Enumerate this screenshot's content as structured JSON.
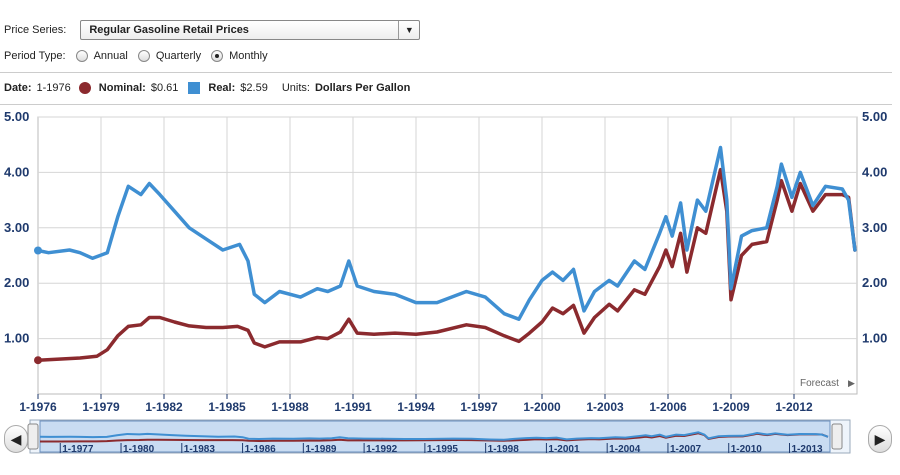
{
  "controls": {
    "series_label": "Price Series:",
    "series_value": "Regular Gasoline Retail Prices",
    "period_label": "Period Type:",
    "periods": [
      "Annual",
      "Quarterly",
      "Monthly"
    ],
    "period_selected": "Monthly"
  },
  "info": {
    "date_label": "Date:",
    "date_value": "1-1976",
    "nominal_label": "Nominal:",
    "nominal_value": "$0.61",
    "real_label": "Real:",
    "real_value": "$2.59",
    "units_label": "Units:",
    "units_value": "Dollars Per Gallon"
  },
  "forecast_label": "Forecast",
  "colors": {
    "nominal": "#8b2a2e",
    "real": "#3f8fd2",
    "axis": "#1f3a6d",
    "grid": "#d6d6d6"
  },
  "chart_data": {
    "type": "line",
    "ylim": [
      0,
      5
    ],
    "yticks": [
      "1.00",
      "2.00",
      "3.00",
      "4.00",
      "5.00"
    ],
    "xlim": [
      1976.0,
      2015.0
    ],
    "xticks": [
      "1-1976",
      "1-1979",
      "1-1982",
      "1-1985",
      "1-1988",
      "1-1991",
      "1-1994",
      "1-1997",
      "1-2000",
      "1-2003",
      "1-2006",
      "1-2009",
      "1-2012"
    ],
    "nav_ticks": [
      "1-1977",
      "1-1980",
      "1-1983",
      "1-1986",
      "1-1989",
      "1-1992",
      "1-1995",
      "1-1998",
      "1-2001",
      "1-2004",
      "1-2007",
      "1-2010",
      "1-2013"
    ],
    "series": [
      {
        "name": "Nominal",
        "points": [
          [
            1976.0,
            0.61
          ],
          [
            1977.0,
            0.63
          ],
          [
            1978.0,
            0.65
          ],
          [
            1978.8,
            0.68
          ],
          [
            1979.3,
            0.8
          ],
          [
            1979.8,
            1.05
          ],
          [
            1980.3,
            1.22
          ],
          [
            1980.9,
            1.25
          ],
          [
            1981.3,
            1.38
          ],
          [
            1981.8,
            1.38
          ],
          [
            1982.5,
            1.3
          ],
          [
            1983.2,
            1.23
          ],
          [
            1984.0,
            1.2
          ],
          [
            1984.8,
            1.2
          ],
          [
            1985.5,
            1.22
          ],
          [
            1986.0,
            1.15
          ],
          [
            1986.3,
            0.92
          ],
          [
            1986.8,
            0.85
          ],
          [
            1987.5,
            0.94
          ],
          [
            1988.5,
            0.94
          ],
          [
            1989.3,
            1.02
          ],
          [
            1989.8,
            1.0
          ],
          [
            1990.4,
            1.12
          ],
          [
            1990.8,
            1.35
          ],
          [
            1991.2,
            1.1
          ],
          [
            1992.0,
            1.08
          ],
          [
            1993.0,
            1.1
          ],
          [
            1994.0,
            1.08
          ],
          [
            1995.0,
            1.12
          ],
          [
            1996.4,
            1.25
          ],
          [
            1997.3,
            1.2
          ],
          [
            1998.2,
            1.05
          ],
          [
            1998.9,
            0.95
          ],
          [
            1999.4,
            1.1
          ],
          [
            2000.0,
            1.3
          ],
          [
            2000.5,
            1.55
          ],
          [
            2001.0,
            1.45
          ],
          [
            2001.5,
            1.6
          ],
          [
            2002.0,
            1.1
          ],
          [
            2002.5,
            1.38
          ],
          [
            2003.2,
            1.62
          ],
          [
            2003.6,
            1.5
          ],
          [
            2004.4,
            1.88
          ],
          [
            2004.9,
            1.8
          ],
          [
            2005.6,
            2.3
          ],
          [
            2005.9,
            2.6
          ],
          [
            2006.2,
            2.3
          ],
          [
            2006.6,
            2.9
          ],
          [
            2006.9,
            2.2
          ],
          [
            2007.4,
            3.0
          ],
          [
            2007.8,
            2.9
          ],
          [
            2008.5,
            4.05
          ],
          [
            2008.8,
            3.3
          ],
          [
            2009.0,
            1.7
          ],
          [
            2009.5,
            2.5
          ],
          [
            2010.0,
            2.7
          ],
          [
            2010.7,
            2.75
          ],
          [
            2011.2,
            3.5
          ],
          [
            2011.4,
            3.85
          ],
          [
            2011.9,
            3.3
          ],
          [
            2012.3,
            3.8
          ],
          [
            2012.9,
            3.3
          ],
          [
            2013.5,
            3.6
          ],
          [
            2014.3,
            3.6
          ],
          [
            2014.6,
            3.55
          ],
          [
            2014.9,
            2.6
          ]
        ]
      },
      {
        "name": "Real",
        "points": [
          [
            1976.0,
            2.59
          ],
          [
            1976.5,
            2.55
          ],
          [
            1977.5,
            2.6
          ],
          [
            1978.0,
            2.55
          ],
          [
            1978.6,
            2.45
          ],
          [
            1979.3,
            2.55
          ],
          [
            1979.8,
            3.2
          ],
          [
            1980.3,
            3.75
          ],
          [
            1980.9,
            3.6
          ],
          [
            1981.3,
            3.8
          ],
          [
            1981.8,
            3.6
          ],
          [
            1982.5,
            3.3
          ],
          [
            1983.2,
            3.0
          ],
          [
            1984.0,
            2.8
          ],
          [
            1984.8,
            2.6
          ],
          [
            1985.6,
            2.7
          ],
          [
            1986.0,
            2.4
          ],
          [
            1986.3,
            1.8
          ],
          [
            1986.8,
            1.65
          ],
          [
            1987.5,
            1.85
          ],
          [
            1988.5,
            1.75
          ],
          [
            1989.3,
            1.9
          ],
          [
            1989.8,
            1.85
          ],
          [
            1990.4,
            1.95
          ],
          [
            1990.8,
            2.4
          ],
          [
            1991.2,
            1.95
          ],
          [
            1992.0,
            1.85
          ],
          [
            1993.0,
            1.8
          ],
          [
            1994.0,
            1.65
          ],
          [
            1995.0,
            1.65
          ],
          [
            1996.4,
            1.85
          ],
          [
            1997.3,
            1.75
          ],
          [
            1998.2,
            1.45
          ],
          [
            1998.9,
            1.35
          ],
          [
            1999.4,
            1.7
          ],
          [
            2000.0,
            2.05
          ],
          [
            2000.5,
            2.2
          ],
          [
            2001.0,
            2.05
          ],
          [
            2001.5,
            2.25
          ],
          [
            2002.0,
            1.5
          ],
          [
            2002.5,
            1.85
          ],
          [
            2003.2,
            2.05
          ],
          [
            2003.6,
            1.95
          ],
          [
            2004.4,
            2.4
          ],
          [
            2004.9,
            2.25
          ],
          [
            2005.6,
            2.9
          ],
          [
            2005.9,
            3.2
          ],
          [
            2006.2,
            2.85
          ],
          [
            2006.6,
            3.45
          ],
          [
            2006.9,
            2.6
          ],
          [
            2007.4,
            3.5
          ],
          [
            2007.8,
            3.3
          ],
          [
            2008.5,
            4.45
          ],
          [
            2008.8,
            3.5
          ],
          [
            2009.0,
            1.9
          ],
          [
            2009.5,
            2.85
          ],
          [
            2010.0,
            2.95
          ],
          [
            2010.7,
            3.0
          ],
          [
            2011.2,
            3.75
          ],
          [
            2011.4,
            4.15
          ],
          [
            2011.9,
            3.55
          ],
          [
            2012.3,
            4.0
          ],
          [
            2012.9,
            3.4
          ],
          [
            2013.5,
            3.75
          ],
          [
            2014.3,
            3.7
          ],
          [
            2014.6,
            3.5
          ],
          [
            2014.9,
            2.6
          ]
        ]
      }
    ]
  }
}
